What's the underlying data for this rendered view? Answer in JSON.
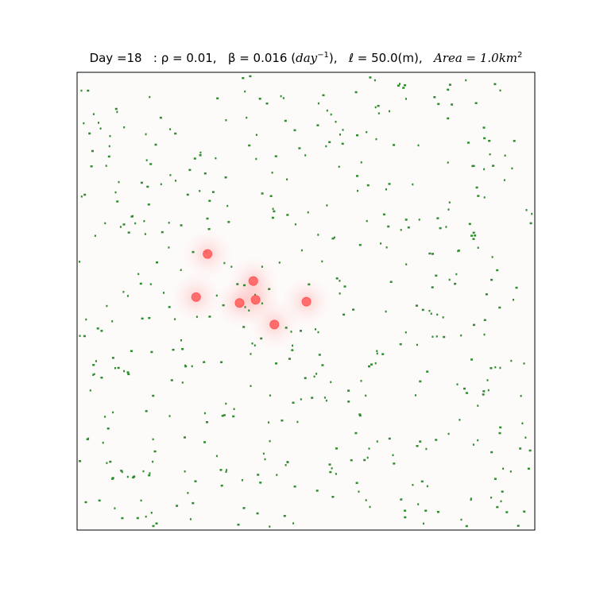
{
  "chart_data": {
    "type": "scatter",
    "title": {
      "day_label": "Day =18",
      "rho": "ρ = 0.01,",
      "beta_prefix": "β = 0.016 (",
      "beta_unit_base": "day",
      "beta_unit_exp": "−1",
      "beta_suffix": "),",
      "ell": "ℓ = 50.0(m),",
      "area_prefix": "Area = 1.0km",
      "area_exp": "2"
    },
    "xlabel": "",
    "ylabel": "",
    "xlim": [
      0,
      1000
    ],
    "ylim": [
      0,
      1000
    ],
    "ticks": "hidden",
    "grid": false,
    "colors": {
      "background": "#fdfbfa",
      "susceptible": "#2e8b2e",
      "infected": "#ff5a5a",
      "infection_glow": "#ff7070"
    },
    "series": [
      {
        "role": "infected",
        "marker": "circle",
        "points": [
          [
            285,
            603
          ],
          [
            385,
            544
          ],
          [
            260,
            509
          ],
          [
            390,
            503
          ],
          [
            355,
            496
          ],
          [
            501,
            499
          ],
          [
            431,
            449
          ]
        ]
      },
      {
        "role": "susceptible",
        "marker": "square",
        "count": 480
      }
    ]
  }
}
